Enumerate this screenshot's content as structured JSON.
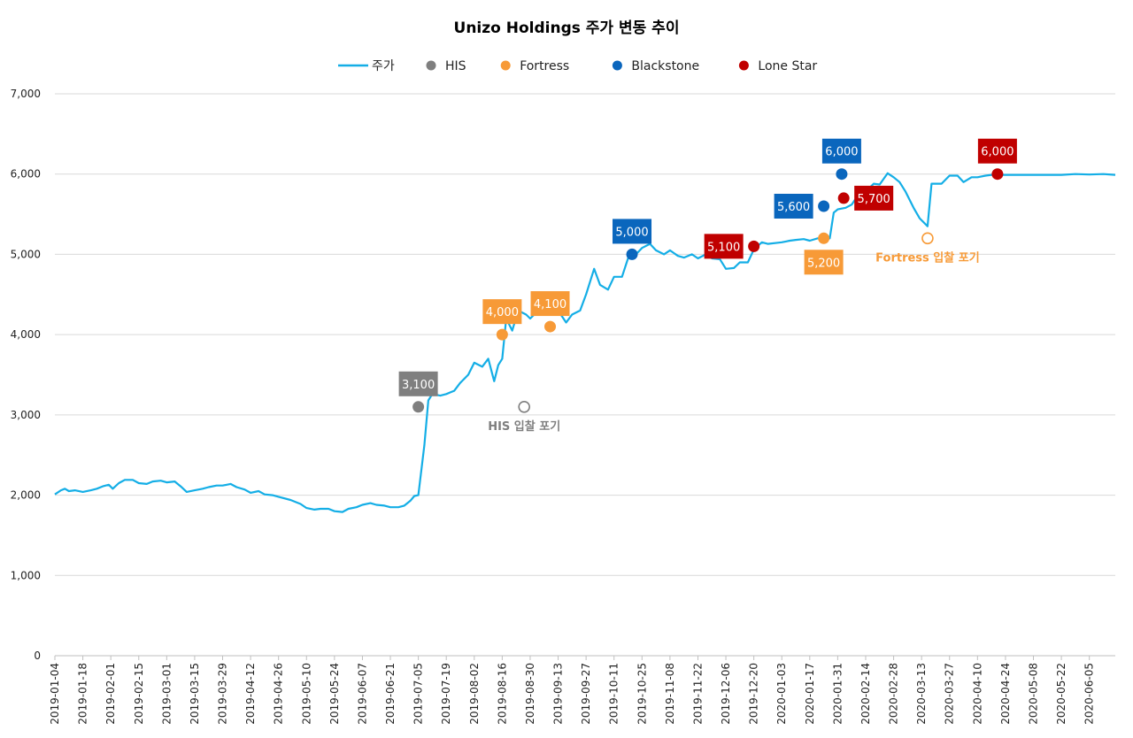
{
  "chart_data": {
    "type": "line",
    "title": "Unizo Holdings 주가 변동 추이",
    "xlabel": "",
    "ylabel": "",
    "ylim": [
      0,
      7000
    ],
    "yticks": [
      0,
      1000,
      2000,
      3000,
      4000,
      5000,
      6000,
      7000
    ],
    "ytick_labels": [
      "0",
      "1,000",
      "2,000",
      "3,000",
      "4,000",
      "5,000",
      "6,000",
      "7,000"
    ],
    "xlim": [
      "2019-01-04",
      "2020-06-18"
    ],
    "xtick_labels": [
      "2019-01-04",
      "2019-01-18",
      "2019-02-01",
      "2019-02-15",
      "2019-03-01",
      "2019-03-15",
      "2019-03-29",
      "2019-04-12",
      "2019-04-26",
      "2019-05-10",
      "2019-05-24",
      "2019-06-07",
      "2019-06-21",
      "2019-07-05",
      "2019-07-19",
      "2019-08-02",
      "2019-08-16",
      "2019-08-30",
      "2019-09-13",
      "2019-09-27",
      "2019-10-11",
      "2019-10-25",
      "2019-11-08",
      "2019-11-22",
      "2019-12-06",
      "2019-12-20",
      "2020-01-03",
      "2020-01-17",
      "2020-01-31",
      "2020-02-14",
      "2020-02-28",
      "2020-03-13",
      "2020-03-27",
      "2020-04-10",
      "2020-04-24",
      "2020-05-08",
      "2020-05-22",
      "2020-06-05"
    ],
    "grid": "horizontal",
    "legend_position": "top",
    "legend": [
      {
        "name": "주가",
        "color": "#14aee6",
        "symbol": "line"
      },
      {
        "name": "HIS",
        "color": "#7f7f7f",
        "symbol": "dot"
      },
      {
        "name": "Fortress",
        "color": "#f79a37",
        "symbol": "dot"
      },
      {
        "name": "Blackstone",
        "color": "#0a66bd",
        "symbol": "dot"
      },
      {
        "name": "Lone Star",
        "color": "#c00000",
        "symbol": "dot"
      }
    ],
    "series": [
      {
        "name": "주가",
        "color": "#14aee6",
        "points": [
          [
            "2019-01-04",
            2010
          ],
          [
            "2019-01-07",
            2060
          ],
          [
            "2019-01-09",
            2080
          ],
          [
            "2019-01-11",
            2050
          ],
          [
            "2019-01-14",
            2060
          ],
          [
            "2019-01-18",
            2040
          ],
          [
            "2019-01-22",
            2060
          ],
          [
            "2019-01-25",
            2080
          ],
          [
            "2019-01-28",
            2110
          ],
          [
            "2019-01-31",
            2130
          ],
          [
            "2019-02-02",
            2080
          ],
          [
            "2019-02-05",
            2150
          ],
          [
            "2019-02-08",
            2190
          ],
          [
            "2019-02-12",
            2190
          ],
          [
            "2019-02-15",
            2150
          ],
          [
            "2019-02-19",
            2140
          ],
          [
            "2019-02-22",
            2170
          ],
          [
            "2019-02-26",
            2180
          ],
          [
            "2019-03-01",
            2160
          ],
          [
            "2019-03-05",
            2170
          ],
          [
            "2019-03-08",
            2110
          ],
          [
            "2019-03-11",
            2040
          ],
          [
            "2019-03-15",
            2060
          ],
          [
            "2019-03-19",
            2080
          ],
          [
            "2019-03-22",
            2100
          ],
          [
            "2019-03-26",
            2120
          ],
          [
            "2019-03-29",
            2120
          ],
          [
            "2019-04-02",
            2140
          ],
          [
            "2019-04-05",
            2100
          ],
          [
            "2019-04-09",
            2070
          ],
          [
            "2019-04-12",
            2030
          ],
          [
            "2019-04-16",
            2050
          ],
          [
            "2019-04-19",
            2010
          ],
          [
            "2019-04-23",
            2000
          ],
          [
            "2019-04-26",
            1980
          ],
          [
            "2019-05-02",
            1940
          ],
          [
            "2019-05-07",
            1890
          ],
          [
            "2019-05-10",
            1840
          ],
          [
            "2019-05-14",
            1820
          ],
          [
            "2019-05-17",
            1830
          ],
          [
            "2019-05-21",
            1830
          ],
          [
            "2019-05-24",
            1800
          ],
          [
            "2019-05-28",
            1790
          ],
          [
            "2019-05-31",
            1830
          ],
          [
            "2019-06-04",
            1850
          ],
          [
            "2019-06-07",
            1880
          ],
          [
            "2019-06-11",
            1900
          ],
          [
            "2019-06-14",
            1880
          ],
          [
            "2019-06-18",
            1870
          ],
          [
            "2019-06-21",
            1850
          ],
          [
            "2019-06-25",
            1850
          ],
          [
            "2019-06-28",
            1870
          ],
          [
            "2019-07-01",
            1930
          ],
          [
            "2019-07-03",
            1990
          ],
          [
            "2019-07-05",
            2000
          ],
          [
            "2019-07-08",
            2620
          ],
          [
            "2019-07-10",
            3180
          ],
          [
            "2019-07-12",
            3260
          ],
          [
            "2019-07-16",
            3240
          ],
          [
            "2019-07-19",
            3260
          ],
          [
            "2019-07-23",
            3300
          ],
          [
            "2019-07-26",
            3400
          ],
          [
            "2019-07-30",
            3500
          ],
          [
            "2019-08-02",
            3650
          ],
          [
            "2019-08-06",
            3600
          ],
          [
            "2019-08-09",
            3700
          ],
          [
            "2019-08-12",
            3420
          ],
          [
            "2019-08-14",
            3620
          ],
          [
            "2019-08-16",
            3700
          ],
          [
            "2019-08-18",
            4200
          ],
          [
            "2019-08-21",
            4050
          ],
          [
            "2019-08-24",
            4300
          ],
          [
            "2019-08-28",
            4250
          ],
          [
            "2019-08-30",
            4200
          ],
          [
            "2019-09-03",
            4300
          ],
          [
            "2019-09-06",
            4290
          ],
          [
            "2019-09-10",
            4250
          ],
          [
            "2019-09-13",
            4300
          ],
          [
            "2019-09-17",
            4150
          ],
          [
            "2019-09-20",
            4250
          ],
          [
            "2019-09-24",
            4300
          ],
          [
            "2019-09-27",
            4500
          ],
          [
            "2019-10-01",
            4820
          ],
          [
            "2019-10-04",
            4620
          ],
          [
            "2019-10-08",
            4560
          ],
          [
            "2019-10-11",
            4720
          ],
          [
            "2019-10-15",
            4720
          ],
          [
            "2019-10-18",
            4950
          ],
          [
            "2019-10-22",
            5000
          ],
          [
            "2019-10-25",
            5080
          ],
          [
            "2019-10-29",
            5130
          ],
          [
            "2019-11-01",
            5050
          ],
          [
            "2019-11-05",
            5000
          ],
          [
            "2019-11-08",
            5050
          ],
          [
            "2019-11-12",
            4980
          ],
          [
            "2019-11-15",
            4960
          ],
          [
            "2019-11-19",
            5000
          ],
          [
            "2019-11-22",
            4950
          ],
          [
            "2019-11-26",
            5000
          ],
          [
            "2019-11-29",
            4950
          ],
          [
            "2019-12-03",
            4940
          ],
          [
            "2019-12-06",
            4820
          ],
          [
            "2019-12-10",
            4830
          ],
          [
            "2019-12-13",
            4900
          ],
          [
            "2019-12-17",
            4900
          ],
          [
            "2019-12-20",
            5060
          ],
          [
            "2019-12-24",
            5150
          ],
          [
            "2019-12-27",
            5130
          ],
          [
            "2020-01-03",
            5150
          ],
          [
            "2020-01-07",
            5170
          ],
          [
            "2020-01-10",
            5180
          ],
          [
            "2020-01-14",
            5190
          ],
          [
            "2020-01-17",
            5170
          ],
          [
            "2020-01-21",
            5200
          ],
          [
            "2020-01-24",
            5180
          ],
          [
            "2020-01-27",
            5200
          ],
          [
            "2020-01-29",
            5520
          ],
          [
            "2020-01-31",
            5560
          ],
          [
            "2020-02-04",
            5580
          ],
          [
            "2020-02-07",
            5620
          ],
          [
            "2020-02-10",
            5730
          ],
          [
            "2020-02-14",
            5780
          ],
          [
            "2020-02-18",
            5880
          ],
          [
            "2020-02-21",
            5870
          ],
          [
            "2020-02-25",
            6010
          ],
          [
            "2020-02-28",
            5960
          ],
          [
            "2020-03-02",
            5900
          ],
          [
            "2020-03-05",
            5780
          ],
          [
            "2020-03-09",
            5580
          ],
          [
            "2020-03-12",
            5450
          ],
          [
            "2020-03-16",
            5350
          ],
          [
            "2020-03-18",
            5880
          ],
          [
            "2020-03-23",
            5880
          ],
          [
            "2020-03-27",
            5980
          ],
          [
            "2020-03-31",
            5980
          ],
          [
            "2020-04-03",
            5900
          ],
          [
            "2020-04-07",
            5960
          ],
          [
            "2020-04-10",
            5960
          ],
          [
            "2020-04-14",
            5980
          ],
          [
            "2020-04-17",
            5990
          ],
          [
            "2020-04-21",
            5990
          ],
          [
            "2020-04-24",
            5990
          ],
          [
            "2020-05-01",
            5990
          ],
          [
            "2020-05-08",
            5990
          ],
          [
            "2020-05-15",
            5990
          ],
          [
            "2020-05-22",
            5990
          ],
          [
            "2020-05-29",
            6000
          ],
          [
            "2020-06-05",
            5995
          ],
          [
            "2020-06-12",
            6000
          ],
          [
            "2020-06-18",
            5990
          ]
        ]
      }
    ],
    "markers": [
      {
        "group": "HIS",
        "date": "2019-07-05",
        "value": 3100,
        "label": "3,100",
        "color": "#7f7f7f",
        "filled": true,
        "label_pos": "above"
      },
      {
        "group": "HIS",
        "date": "2019-08-27",
        "value": 3100,
        "label": "",
        "color": "#7f7f7f",
        "filled": false,
        "label_pos": "none"
      },
      {
        "group": "Fortress",
        "date": "2019-08-16",
        "value": 4000,
        "label": "4,000",
        "color": "#f79a37",
        "filled": true,
        "label_pos": "above"
      },
      {
        "group": "Fortress",
        "date": "2019-09-09",
        "value": 4100,
        "label": "4,100",
        "color": "#f79a37",
        "filled": true,
        "label_pos": "above"
      },
      {
        "group": "Fortress",
        "date": "2020-01-24",
        "value": 5200,
        "label": "5,200",
        "color": "#f79a37",
        "filled": true,
        "label_pos": "below"
      },
      {
        "group": "Fortress",
        "date": "2020-03-16",
        "value": 5200,
        "label": "",
        "color": "#f79a37",
        "filled": false,
        "label_pos": "none"
      },
      {
        "group": "Blackstone",
        "date": "2019-10-20",
        "value": 5000,
        "label": "5,000",
        "color": "#0a66bd",
        "filled": true,
        "label_pos": "above"
      },
      {
        "group": "Blackstone",
        "date": "2020-01-24",
        "value": 5600,
        "label": "5,600",
        "color": "#0a66bd",
        "filled": true,
        "label_pos": "left"
      },
      {
        "group": "Blackstone",
        "date": "2020-02-02",
        "value": 6000,
        "label": "6,000",
        "color": "#0a66bd",
        "filled": true,
        "label_pos": "above"
      },
      {
        "group": "Lone Star",
        "date": "2019-12-20",
        "value": 5100,
        "label": "5,100",
        "color": "#c00000",
        "filled": true,
        "label_pos": "left"
      },
      {
        "group": "Lone Star",
        "date": "2020-02-03",
        "value": 5700,
        "label": "5,700",
        "color": "#c00000",
        "filled": true,
        "label_pos": "right"
      },
      {
        "group": "Lone Star",
        "date": "2020-04-20",
        "value": 6000,
        "label": "6,000",
        "color": "#c00000",
        "filled": true,
        "label_pos": "above"
      }
    ],
    "annotations": [
      {
        "text": "HIS 입찰 포기",
        "date": "2019-08-27",
        "value": 3100,
        "color": "#7f7f7f"
      },
      {
        "text": "Fortress 입찰 포기",
        "date": "2020-03-16",
        "value": 5200,
        "color": "#f79a37"
      }
    ]
  }
}
